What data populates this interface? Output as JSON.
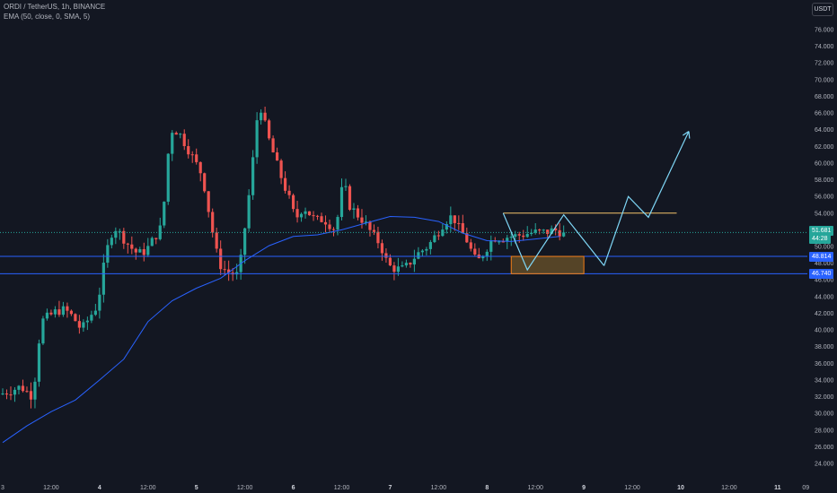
{
  "legend": {
    "symbol_line": "ORDI / TetherUS, 1h, BINANCE",
    "ema_line": "EMA (50, close, 0, SMA, 5)"
  },
  "currency_button": "USDT",
  "price_tags": {
    "last_price": "51.681",
    "countdown": "44:28",
    "level_high": "48.814",
    "level_low": "46.740"
  },
  "colors": {
    "background": "#131722",
    "up_candle": "#26a69a",
    "down_candle": "#ef5350",
    "ema_line": "#2962ff",
    "horizontal_level": "#2962ff",
    "zone_fill": "#8d6a2b",
    "zone_border": "#f57f17",
    "resistance_line": "#f5c36b",
    "projection_path": "#7fd7f7"
  },
  "chart_data": {
    "type": "candlestick",
    "symbol": "ORDI / TetherUS",
    "interval": "1h",
    "exchange": "BINANCE",
    "ylim": [
      22,
      78
    ],
    "y_ticks": [
      "24.000",
      "26.000",
      "28.000",
      "30.000",
      "32.000",
      "34.000",
      "36.000",
      "38.000",
      "40.000",
      "42.000",
      "44.000",
      "46.000",
      "48.000",
      "50.000",
      "52.000",
      "54.000",
      "56.000",
      "58.000",
      "60.000",
      "62.000",
      "64.000",
      "66.000",
      "68.000",
      "70.000",
      "72.000",
      "74.000",
      "76.000"
    ],
    "x_ticks": [
      "3",
      "12:00",
      "4",
      "12:00",
      "5",
      "12:00",
      "6",
      "12:00",
      "7",
      "12:00",
      "8",
      "12:00",
      "9",
      "12:00",
      "10",
      "12:00",
      "11",
      "09"
    ],
    "x_ticks_bold": [
      "4",
      "5",
      "6",
      "7",
      "8",
      "9",
      "10",
      "11"
    ],
    "x_tick_hours": [
      0,
      12,
      24,
      36,
      48,
      60,
      72,
      84,
      96,
      108,
      120,
      132,
      144,
      156,
      168,
      180,
      192,
      199
    ],
    "price_anchor_hours": [
      0,
      5,
      8,
      10,
      14,
      16,
      18,
      20,
      24,
      26,
      28,
      32,
      34,
      36,
      40,
      42,
      44,
      47,
      50,
      52,
      54,
      56,
      59,
      62,
      64,
      66,
      69,
      72,
      73,
      75,
      78,
      80,
      83,
      85,
      86,
      88,
      90,
      92,
      94,
      96,
      98,
      100,
      103,
      106,
      108,
      110,
      112,
      114,
      115,
      117,
      118,
      120,
      122,
      124,
      126,
      128,
      130,
      132,
      134,
      136,
      137,
      138,
      139
    ],
    "price_anchor_values": [
      32.3,
      33.2,
      32.0,
      41.0,
      42.3,
      42.4,
      41.5,
      40.0,
      43.0,
      49.0,
      52.5,
      50.0,
      49.1,
      49.5,
      52.5,
      64.0,
      63.8,
      61.2,
      58.5,
      53.0,
      48.0,
      47.0,
      46.5,
      58.0,
      67.6,
      63.5,
      59.0,
      55.0,
      53.2,
      54.8,
      53.1,
      53.3,
      52.0,
      58.2,
      55.2,
      54.0,
      53.0,
      51.5,
      50.3,
      47.7,
      47.3,
      47.3,
      49.0,
      50.1,
      51.5,
      53.0,
      53.7,
      51.7,
      51.3,
      49.0,
      48.0,
      49.5,
      51.1,
      51.0,
      51.2,
      51.3,
      51.5,
      51.7,
      51.681,
      51.8,
      52.0,
      51.9,
      51.681
    ],
    "ema": {
      "name": "EMA (50, close, 0, SMA, 5)",
      "hours": [
        0,
        6,
        12,
        18,
        24,
        30,
        36,
        42,
        48,
        54,
        60,
        66,
        72,
        78,
        84,
        90,
        96,
        102,
        108,
        114,
        120,
        126,
        132,
        138
      ],
      "values": [
        26.5,
        28.5,
        30.2,
        31.6,
        34.0,
        36.5,
        41.0,
        43.5,
        45.0,
        46.2,
        48.3,
        50.1,
        51.2,
        51.4,
        52.0,
        52.8,
        53.6,
        53.5,
        53.0,
        51.6,
        50.7,
        50.6,
        50.9,
        51.2
      ]
    },
    "levels": {
      "level_high": 48.814,
      "level_low": 46.74,
      "last_price": 51.681,
      "resistance": 54.0
    },
    "zone": {
      "hour_start": 126,
      "hour_end": 144,
      "price_top": 48.814,
      "price_bottom": 46.74
    },
    "resistance_hours": [
      124,
      167
    ],
    "pattern_path": {
      "hours": [
        124,
        130,
        139,
        149
      ],
      "values": [
        54.0,
        47.2,
        53.8,
        47.7
      ]
    },
    "projection_path": {
      "hours": [
        149,
        155,
        160,
        170
      ],
      "values": [
        47.7,
        56.0,
        53.5,
        63.8
      ]
    }
  }
}
